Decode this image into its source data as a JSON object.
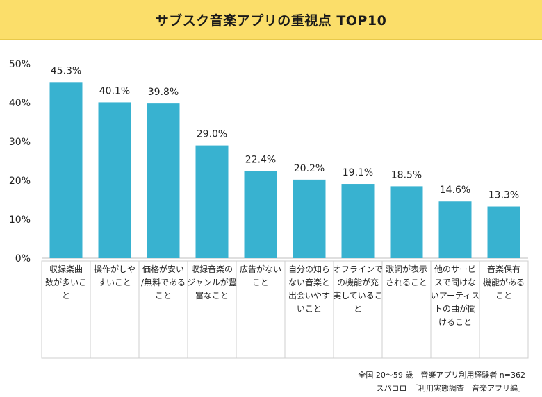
{
  "chart_data": {
    "type": "bar",
    "title": "サブスク音楽アプリの重視点 TOP10",
    "categories": [
      [
        "収録楽曲",
        "数が多いこ",
        "と"
      ],
      [
        "操作がしや",
        "すいこと"
      ],
      [
        "価格が安い",
        "/無料である",
        "こと"
      ],
      [
        "収録音楽の",
        "ジャンルが豊",
        "富なこと"
      ],
      [
        "広告がない",
        "こと"
      ],
      [
        "自分の知ら",
        "ない音楽と",
        "出会いやす",
        "いこと"
      ],
      [
        "オフラインで",
        "の機能が充",
        "実しているこ",
        "と"
      ],
      [
        "歌詞が表示",
        "されること"
      ],
      [
        "他のサービ",
        "スで聞けな",
        "いアーティス",
        "トの曲が聞",
        "けること"
      ],
      [
        "音楽保有",
        "機能がある",
        "こと"
      ]
    ],
    "values": [
      45.3,
      40.1,
      39.8,
      29.0,
      22.4,
      20.2,
      19.1,
      18.5,
      14.6,
      13.3
    ],
    "value_labels": [
      "45.3%",
      "40.1%",
      "39.8%",
      "29.0%",
      "22.4%",
      "20.2%",
      "19.1%",
      "18.5%",
      "14.6%",
      "13.3%"
    ],
    "yticks": [
      0,
      10,
      20,
      30,
      40,
      50
    ],
    "ytick_labels": [
      "0%",
      "10%",
      "20%",
      "30%",
      "40%",
      "50%"
    ],
    "ylim": [
      0,
      50
    ],
    "grid": false,
    "bar_color": "#38b2d0",
    "xlabel": "",
    "ylabel": ""
  },
  "footnotes": {
    "line1": "全国 20～59 歳　音楽アプリ利用経験者 n=362",
    "line2": "スパコロ　「利用実態調査　音楽アプリ編」"
  }
}
